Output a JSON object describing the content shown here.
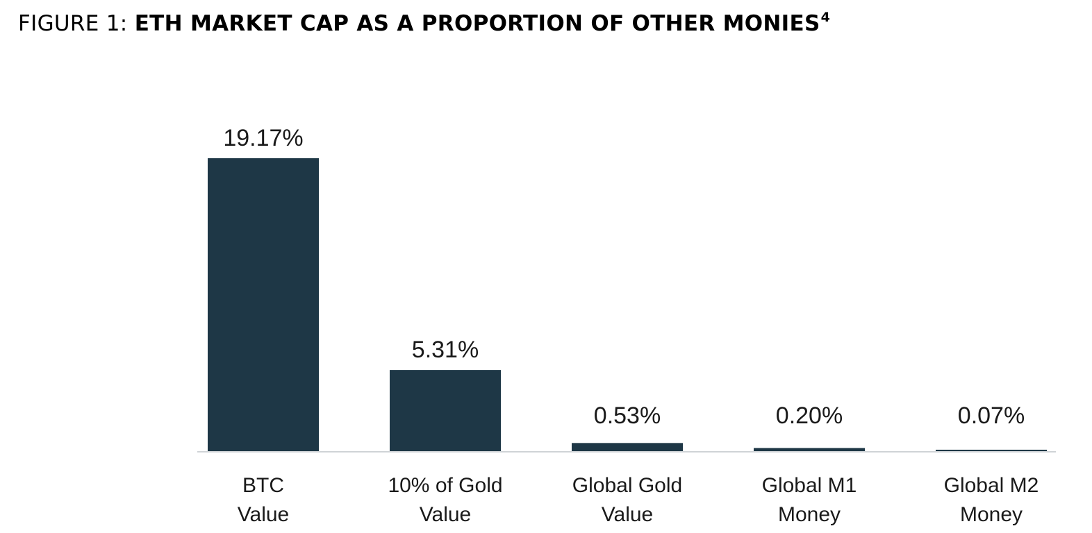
{
  "figure": {
    "prefix": "FIGURE 1:",
    "title": "ETH MARKET CAP AS A PROPORTION OF OTHER MONIES",
    "footnote": "4"
  },
  "colors": {
    "bar": "#1e3746",
    "baseline": "#cfd3d6"
  },
  "chart_data": {
    "type": "bar",
    "title": "ETH MARKET CAP AS A PROPORTION OF OTHER MONIES",
    "categories": [
      [
        "BTC",
        "Value"
      ],
      [
        "10% of Gold",
        "Value"
      ],
      [
        "Global Gold",
        "Value"
      ],
      [
        "Global M1",
        "Money"
      ],
      [
        "Global M2",
        "Money"
      ]
    ],
    "values": [
      19.17,
      5.31,
      0.53,
      0.2,
      0.07
    ],
    "value_labels": [
      "19.17%",
      "5.31%",
      "0.53%",
      "0.20%",
      "0.07%"
    ],
    "unit": "%",
    "xlabel": "",
    "ylabel": "",
    "grid": false,
    "legend": "none"
  }
}
